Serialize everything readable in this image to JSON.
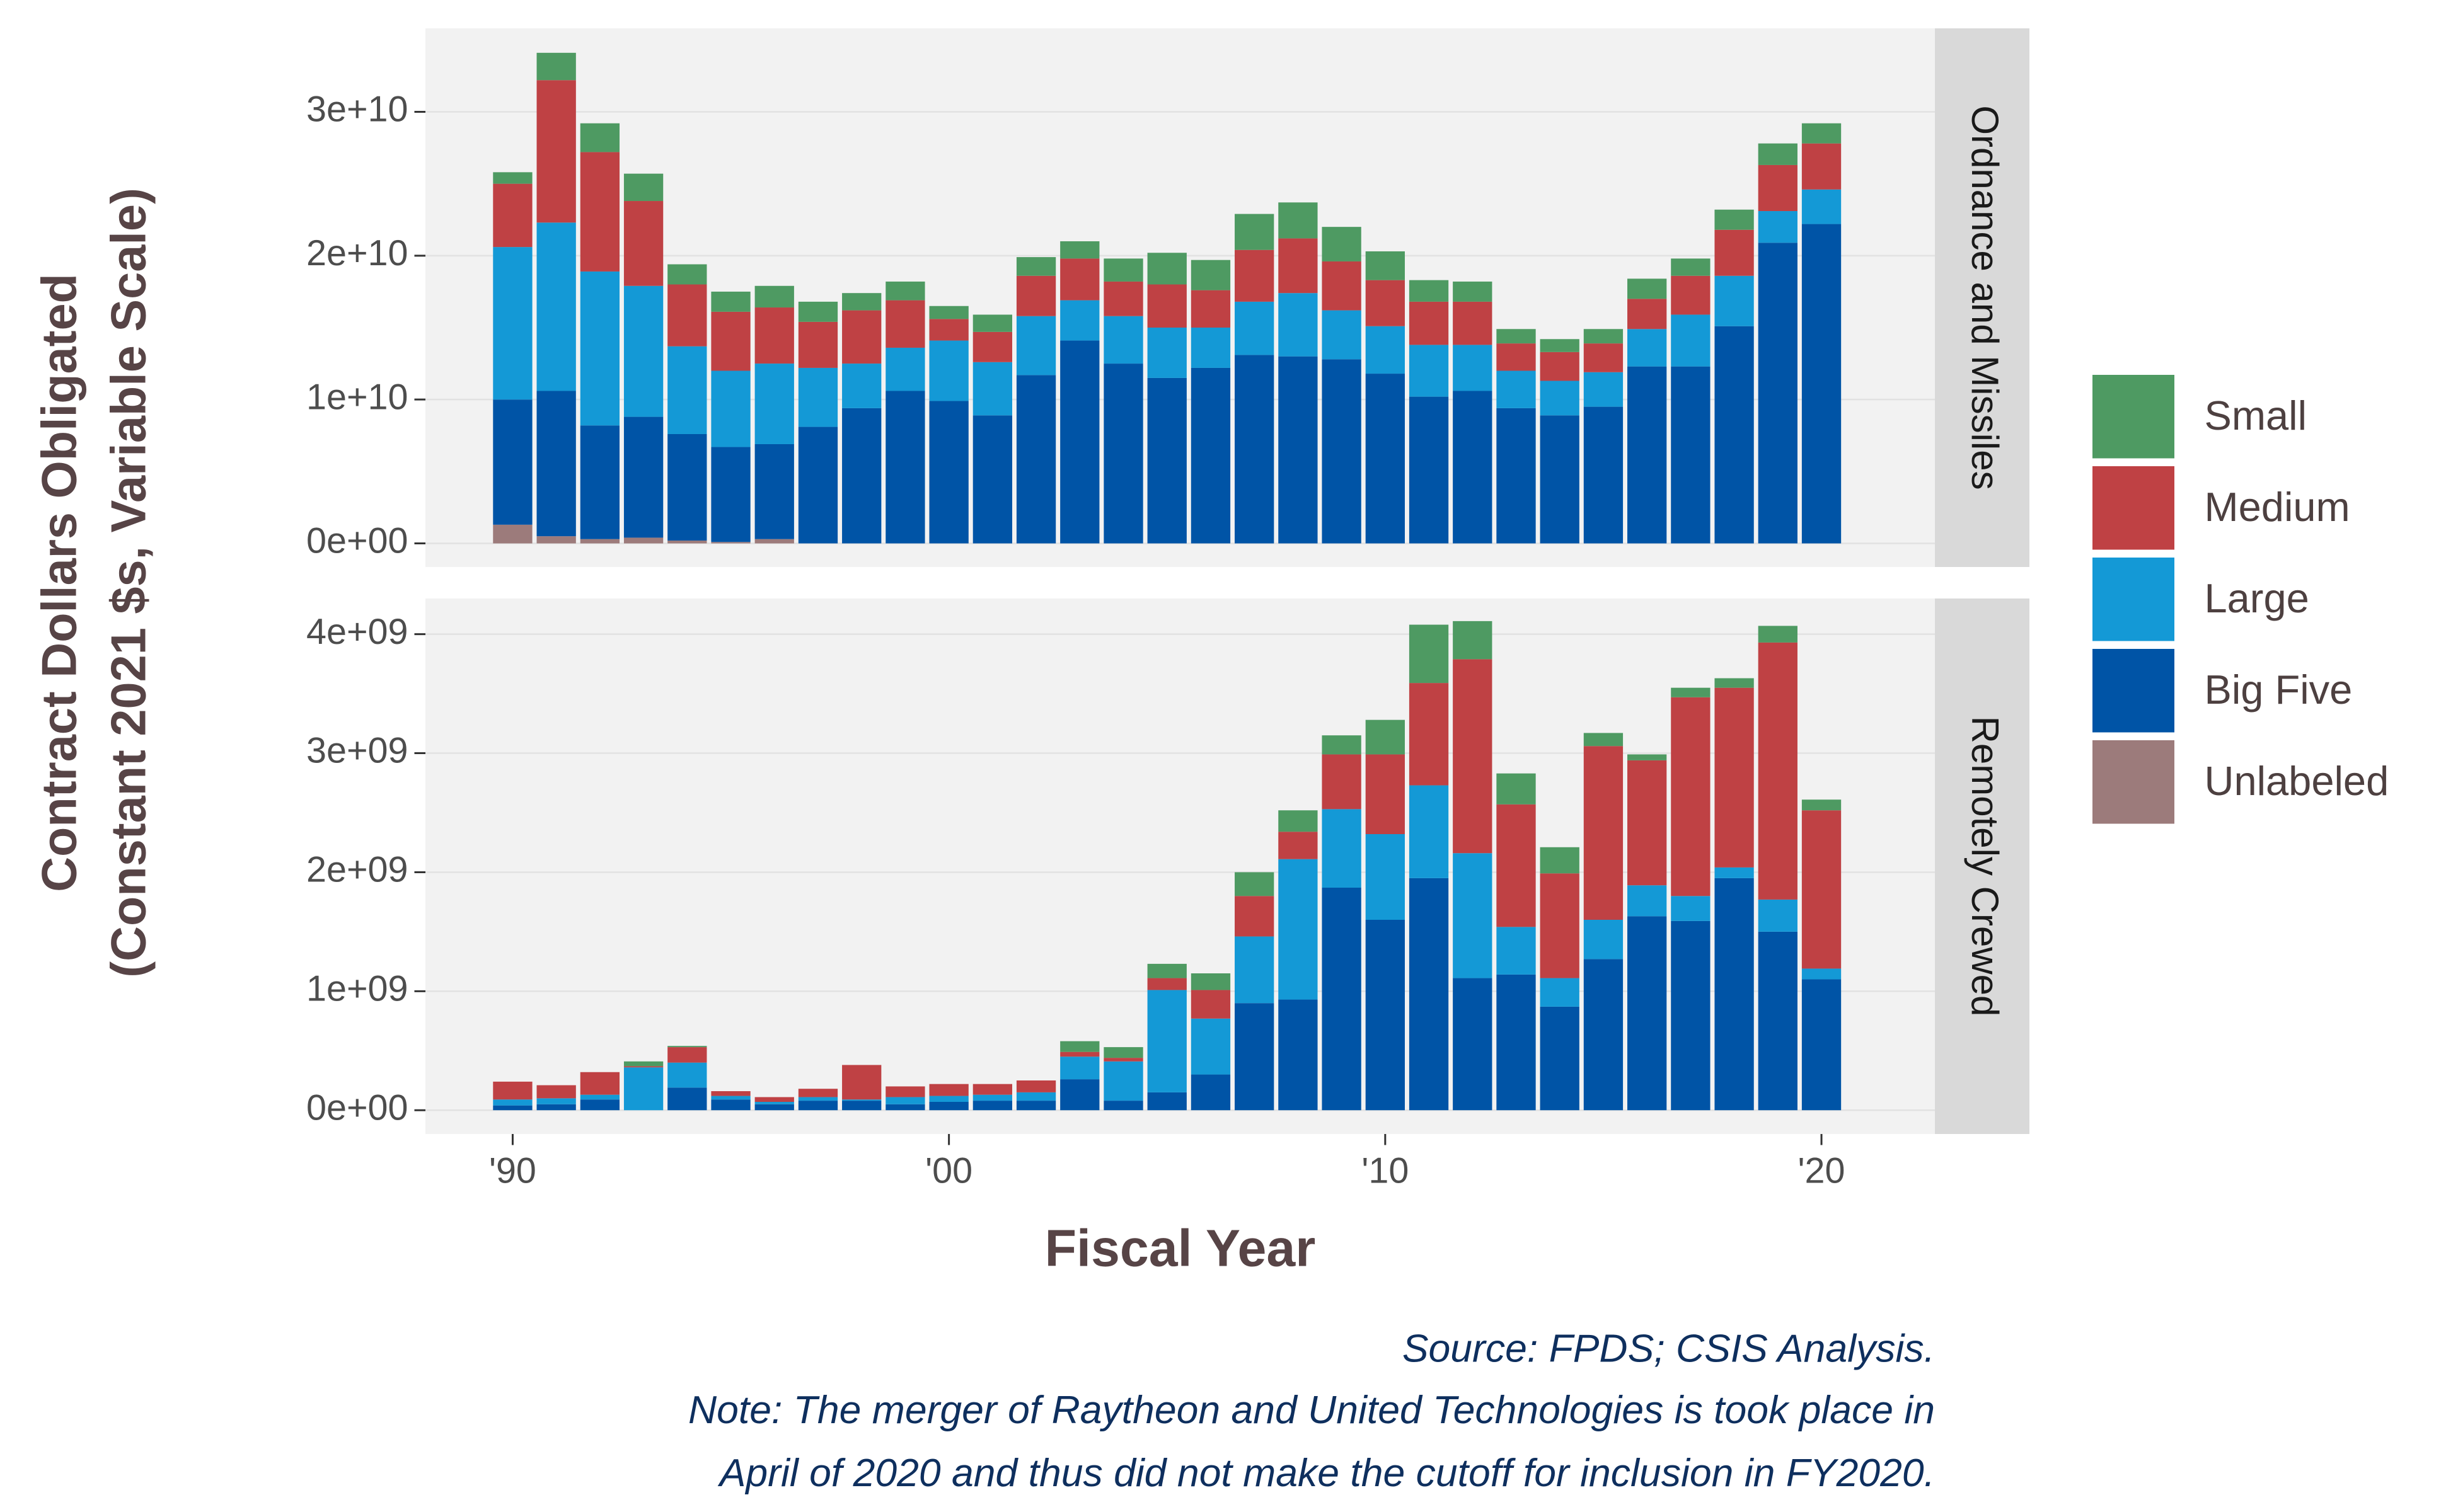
{
  "chart_data": {
    "type": "bar",
    "stacked": true,
    "legend": "right",
    "y_label": [
      "Contract Dollars Obligated",
      "(Constant 2021 $s, Variable Scale)"
    ],
    "x_label": "Fiscal Year",
    "caption": [
      "Source: FPDS; CSIS Analysis.",
      "Note: The merger of Raytheon and United Technologies is took place in",
      "April of 2020 and thus did not make the cutoff for inclusion in FY2020."
    ],
    "x": [
      1990,
      1991,
      1992,
      1993,
      1994,
      1995,
      1996,
      1997,
      1998,
      1999,
      2000,
      2001,
      2002,
      2003,
      2004,
      2005,
      2006,
      2007,
      2008,
      2009,
      2010,
      2011,
      2012,
      2013,
      2014,
      2015,
      2016,
      2017,
      2018,
      2019,
      2020
    ],
    "xlim": [
      1988,
      2022.6
    ],
    "xticks": [
      {
        "value": 1990,
        "label": "'90"
      },
      {
        "value": 2000,
        "label": "'00"
      },
      {
        "value": 2010,
        "label": "'10"
      },
      {
        "value": 2020,
        "label": "'20"
      }
    ],
    "series": [
      {
        "name": "Unlabeled",
        "color": "#9c7b7b"
      },
      {
        "name": "Big Five",
        "color": "#0054a6"
      },
      {
        "name": "Large",
        "color": "#1499d6"
      },
      {
        "name": "Medium",
        "color": "#bf4144"
      },
      {
        "name": "Small",
        "color": "#4e9a62"
      }
    ],
    "facets": [
      {
        "title": "Ordnance and Missiles",
        "ylim": [
          -1640000000.0,
          35800000000.0
        ],
        "yticks": [
          {
            "value": 0,
            "label": "0e+00"
          },
          {
            "value": 10000000000.0,
            "label": "1e+10"
          },
          {
            "value": 20000000000.0,
            "label": "2e+10"
          },
          {
            "value": 30000000000.0,
            "label": "3e+10"
          }
        ],
        "values": [
          [
            1300000000.0,
            500000000.0,
            300000000.0,
            400000000.0,
            200000000.0,
            100000000.0,
            300000000.0,
            0,
            0,
            0,
            0,
            0,
            0,
            0,
            0,
            0,
            0,
            0,
            0,
            0,
            0,
            0,
            0,
            0,
            0,
            0,
            0,
            0,
            0,
            0,
            0
          ],
          [
            8700000000.0,
            10100000000.0,
            7900000000.0,
            8400000000.0,
            7400000000.0,
            6600000000.0,
            6600000000.0,
            8100000000.0,
            9400000000.0,
            10600000000.0,
            9900000000.0,
            8900000000.0,
            11700000000.0,
            14100000000.0,
            12500000000.0,
            11500000000.0,
            12200000000.0,
            13100000000.0,
            13000000000.0,
            12800000000.0,
            11800000000.0,
            10200000000.0,
            10600000000.0,
            9400000000.0,
            8900000000.0,
            9500000000.0,
            12300000000.0,
            12300000000.0,
            15100000000.0,
            20900000000.0,
            22200000000.0
          ],
          [
            10600000000.0,
            11700000000.0,
            10700000000.0,
            9100000000.0,
            6100000000.0,
            5300000000.0,
            5600000000.0,
            4100000000.0,
            3100000000.0,
            3000000000.0,
            4200000000.0,
            3700000000.0,
            4100000000.0,
            2800000000.0,
            3300000000.0,
            3500000000.0,
            2800000000.0,
            3700000000.0,
            4400000000.0,
            3400000000.0,
            3300000000.0,
            3600000000.0,
            3200000000.0,
            2600000000.0,
            2400000000.0,
            2400000000.0,
            2600000000.0,
            3600000000.0,
            3500000000.0,
            2200000000.0,
            2400000000.0
          ],
          [
            4400000000.0,
            9900000000.0,
            8300000000.0,
            5900000000.0,
            4300000000.0,
            4100000000.0,
            3900000000.0,
            3200000000.0,
            3700000000.0,
            3300000000.0,
            1500000000.0,
            2100000000.0,
            2800000000.0,
            2900000000.0,
            2400000000.0,
            3000000000.0,
            2600000000.0,
            3600000000.0,
            3800000000.0,
            3400000000.0,
            3200000000.0,
            3000000000.0,
            3000000000.0,
            1900000000.0,
            2000000000.0,
            2000000000.0,
            2100000000.0,
            2700000000.0,
            3200000000.0,
            3200000000.0,
            3200000000.0
          ],
          [
            800000000.0,
            1900000000.0,
            2000000000.0,
            1900000000.0,
            1400000000.0,
            1400000000.0,
            1500000000.0,
            1400000000.0,
            1200000000.0,
            1300000000.0,
            900000000.0,
            1200000000.0,
            1300000000.0,
            1200000000.0,
            1600000000.0,
            2200000000.0,
            2100000000.0,
            2500000000.0,
            2500000000.0,
            2400000000.0,
            2000000000.0,
            1500000000.0,
            1400000000.0,
            1000000000.0,
            900000000.0,
            1000000000.0,
            1400000000.0,
            1200000000.0,
            1400000000.0,
            1500000000.0,
            1400000000.0
          ]
        ]
      },
      {
        "title": "Remotely Crewed",
        "ylim": [
          -200000000.0,
          4300000000.0
        ],
        "yticks": [
          {
            "value": 0,
            "label": "0e+00"
          },
          {
            "value": 1000000000.0,
            "label": "1e+09"
          },
          {
            "value": 2000000000.0,
            "label": "2e+09"
          },
          {
            "value": 3000000000.0,
            "label": "3e+09"
          },
          {
            "value": 4000000000.0,
            "label": "4e+09"
          }
        ],
        "values": [
          [
            0,
            0,
            0,
            0,
            0,
            0,
            0,
            0,
            0,
            0,
            0,
            0,
            0,
            0,
            0,
            0,
            0,
            0,
            0,
            0,
            0,
            0,
            0,
            0,
            0,
            0,
            0,
            0,
            0,
            0,
            0
          ],
          [
            40000000.0,
            50000000.0,
            90000000.0,
            0,
            190000000.0,
            90000000.0,
            50000000.0,
            80000000.0,
            80000000.0,
            50000000.0,
            70000000.0,
            80000000.0,
            80000000.0,
            260000000.0,
            80000000.0,
            150000000.0,
            300000000.0,
            900000000.0,
            930000000.0,
            1870000000.0,
            1600000000.0,
            1950000000.0,
            1110000000.0,
            1140000000.0,
            870000000.0,
            1270000000.0,
            1630000000.0,
            1590000000.0,
            1950000000.0,
            1500000000.0,
            1100000000.0
          ],
          [
            50000000.0,
            50000000.0,
            40000000.0,
            360000000.0,
            210000000.0,
            30000000.0,
            20000000.0,
            30000000.0,
            10000000.0,
            60000000.0,
            50000000.0,
            50000000.0,
            70000000.0,
            190000000.0,
            330000000.0,
            860000000.0,
            470000000.0,
            560000000.0,
            1180000000.0,
            660000000.0,
            720000000.0,
            780000000.0,
            1050000000.0,
            400000000.0,
            240000000.0,
            330000000.0,
            260000000.0,
            210000000.0,
            90000000.0,
            270000000.0,
            90000000.0
          ],
          [
            150000000.0,
            110000000.0,
            190000000.0,
            10000000.0,
            130000000.0,
            40000000.0,
            40000000.0,
            70000000.0,
            290000000.0,
            90000000.0,
            100000000.0,
            90000000.0,
            100000000.0,
            40000000.0,
            30000000.0,
            100000000.0,
            240000000.0,
            340000000.0,
            230000000.0,
            460000000.0,
            670000000.0,
            860000000.0,
            1630000000.0,
            1030000000.0,
            880000000.0,
            1460000000.0,
            1050000000.0,
            1670000000.0,
            1510000000.0,
            2160000000.0,
            1330000000.0
          ],
          [
            0,
            0,
            0,
            40000000.0,
            10000000.0,
            0,
            0,
            0,
            0,
            0,
            0,
            0,
            0,
            90000000.0,
            90000000.0,
            120000000.0,
            140000000.0,
            200000000.0,
            180000000.0,
            160000000.0,
            290000000.0,
            490000000.0,
            320000000.0,
            260000000.0,
            220000000.0,
            110000000.0,
            50000000.0,
            80000000.0,
            80000000.0,
            140000000.0,
            90000000.0
          ]
        ]
      }
    ]
  }
}
